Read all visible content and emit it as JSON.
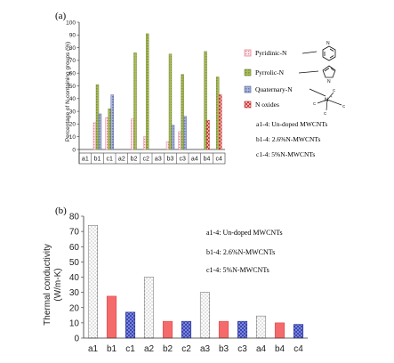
{
  "panel_a": {
    "label": "(a)",
    "legend": [
      {
        "name": "Pyridinic-N",
        "color": "#f4a6b4",
        "pattern": "dots"
      },
      {
        "name": "Pyrrolic-N",
        "color": "#9bb04a",
        "pattern": "hatch-green"
      },
      {
        "name": "Quaternary-N",
        "color": "#8b99c4",
        "pattern": "hatch-blue"
      },
      {
        "name": "N oxides",
        "color": "#d23a3a",
        "pattern": "check-red"
      }
    ],
    "notes": [
      "a1-4: Un-doped MWCNTs",
      "b1-4: 2.6%N-MWCNTs",
      "c1-4: 5%N-MWCNTs"
    ]
  },
  "panel_b": {
    "label": "(b)",
    "notes": [
      "a1-4: Un-doped MWCNTs",
      "b1-4: 2.6%N-MWCNTs",
      "c1-4: 5%N-MWCNTs"
    ]
  },
  "chart_data": [
    {
      "type": "bar",
      "ylabel": "Percentage of N-containing groups (%)",
      "ylim": [
        0,
        100
      ],
      "yticks": [
        0,
        10,
        20,
        30,
        40,
        50,
        60,
        70,
        80,
        90,
        100
      ],
      "categories": [
        "a1",
        "b1",
        "c1",
        "a2",
        "b2",
        "c2",
        "a3",
        "b3",
        "c3",
        "a4",
        "b4",
        "c4"
      ],
      "series": [
        {
          "name": "Pyridinic-N",
          "values": [
            0,
            21,
            25,
            0,
            24,
            10,
            0,
            6,
            14,
            0,
            0,
            0
          ]
        },
        {
          "name": "Pyrrolic-N",
          "values": [
            0,
            51,
            32,
            0,
            76,
            91,
            0,
            75,
            59,
            0,
            77,
            57
          ]
        },
        {
          "name": "Quaternary-N",
          "values": [
            0,
            28,
            43,
            0,
            0,
            0,
            0,
            19,
            26,
            0,
            0,
            0
          ]
        },
        {
          "name": "N oxides",
          "values": [
            0,
            0,
            0,
            0,
            0,
            0,
            0,
            0,
            0,
            0,
            23,
            43
          ]
        }
      ],
      "grid": false
    },
    {
      "type": "bar",
      "ylabel": "Thermal conductivity (W/m-K)",
      "ylim": [
        0,
        80
      ],
      "yticks": [
        0,
        10,
        20,
        30,
        40,
        50,
        60,
        70,
        80
      ],
      "categories": [
        "a1",
        "b1",
        "c1",
        "a2",
        "b2",
        "c2",
        "a3",
        "b3",
        "c3",
        "a4",
        "b4",
        "c4"
      ],
      "values": [
        74,
        27.5,
        17,
        40,
        11,
        11,
        30,
        11,
        11,
        14.5,
        10,
        9
      ],
      "colors": {
        "a": "#ffffff",
        "b": "#f56b6b",
        "c": "#3a47b8"
      },
      "grid": false
    }
  ]
}
